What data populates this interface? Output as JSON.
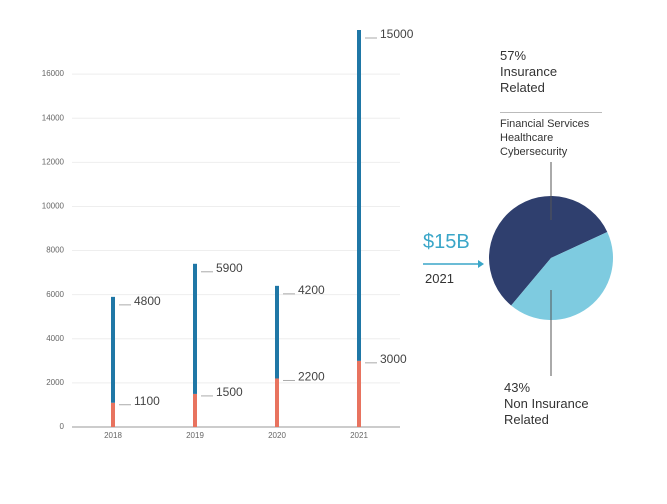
{
  "chart_data": [
    {
      "type": "stacked_bar",
      "categories": [
        "2018",
        "2019",
        "2020",
        "2021"
      ],
      "series": [
        {
          "color": "#e8735f",
          "values": [
            1100,
            1500,
            2200,
            3000
          ]
        },
        {
          "color": "#1f77a6",
          "values": [
            4800,
            5900,
            4200,
            15000
          ]
        }
      ],
      "ylim": [
        0,
        18000
      ],
      "yticks": [
        0,
        2000,
        4000,
        6000,
        8000,
        10000,
        12000,
        14000,
        16000
      ],
      "grid": true
    },
    {
      "type": "pie",
      "title": "$15B",
      "subtitle": "2021",
      "categories": [
        "Insurance Related",
        "Non Insurance Related"
      ],
      "values": [
        57,
        43
      ],
      "value_labels": [
        "57%",
        "43%"
      ],
      "colors": [
        "#2f3f6e",
        "#7ecbe0"
      ],
      "annotations": [
        "Financial Services",
        "Healthcare",
        "Cybersecurity"
      ]
    }
  ]
}
